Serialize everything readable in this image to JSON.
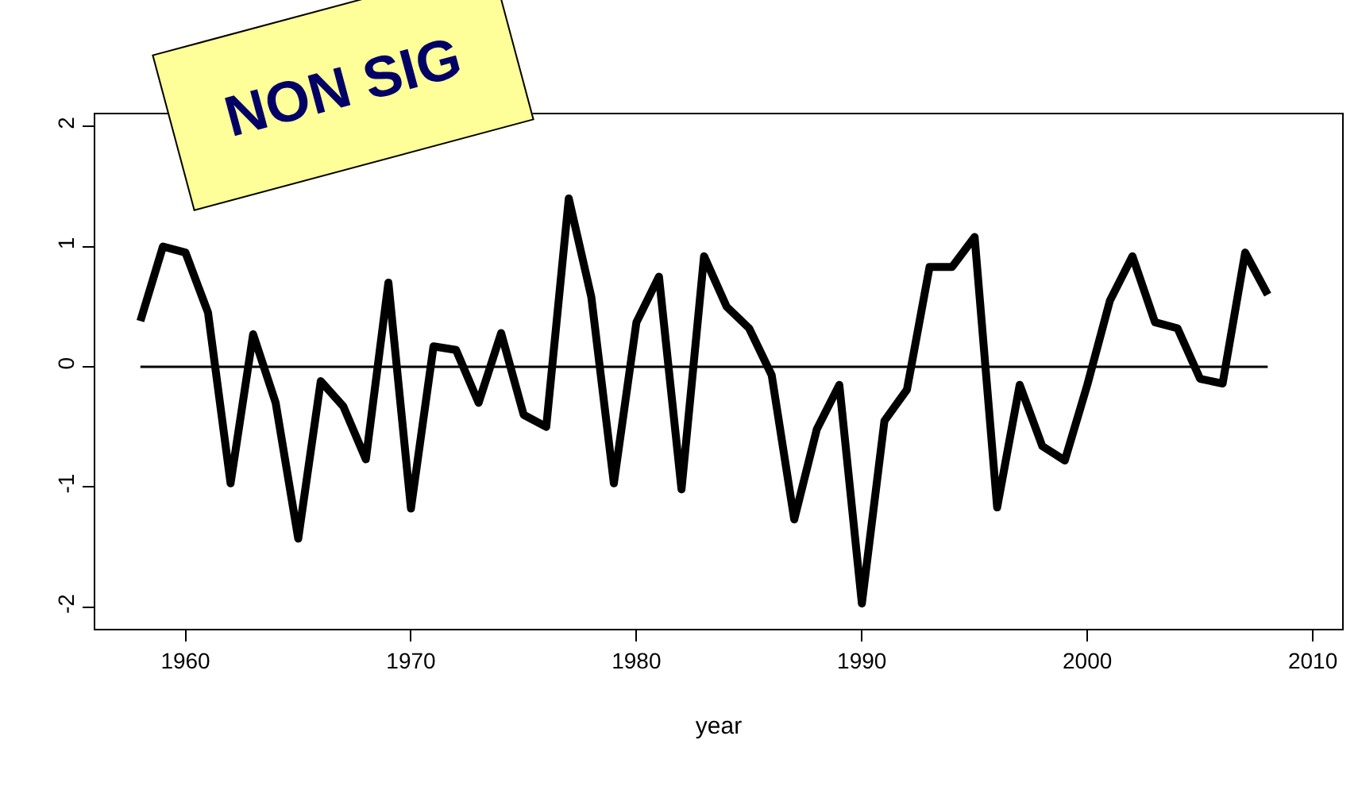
{
  "chart_data": {
    "type": "line",
    "xlabel": "year",
    "annotations": [
      "NON SIG"
    ],
    "x": [
      1958,
      1959,
      1960,
      1961,
      1962,
      1963,
      1964,
      1965,
      1966,
      1967,
      1968,
      1969,
      1970,
      1971,
      1972,
      1973,
      1974,
      1975,
      1976,
      1977,
      1978,
      1979,
      1980,
      1981,
      1982,
      1983,
      1984,
      1985,
      1986,
      1987,
      1988,
      1989,
      1990,
      1991,
      1992,
      1993,
      1994,
      1995,
      1996,
      1997,
      1998,
      1999,
      2000,
      2001,
      2002,
      2003,
      2004,
      2005,
      2006,
      2007,
      2008
    ],
    "series": [
      {
        "color": "#000000",
        "values": [
          0.38,
          1.0,
          0.95,
          0.45,
          -0.97,
          0.27,
          -0.3,
          -1.43,
          -0.12,
          -0.33,
          -0.77,
          0.7,
          -1.18,
          0.17,
          0.14,
          -0.3,
          0.28,
          -0.4,
          -0.5,
          1.4,
          0.58,
          -0.97,
          0.37,
          0.75,
          -1.02,
          0.92,
          0.5,
          0.32,
          -0.07,
          -1.27,
          -0.52,
          -0.15,
          -1.97,
          -0.45,
          -0.19,
          0.83,
          0.83,
          1.08,
          -1.17,
          -0.15,
          -0.66,
          -0.78,
          -0.15,
          0.55,
          0.92,
          0.37,
          0.32,
          -0.1,
          -0.14,
          0.95,
          0.6
        ]
      }
    ],
    "xlim": [
      1956,
      2011.3
    ],
    "xticks": [
      1960,
      1970,
      1980,
      1990,
      2000,
      2010
    ],
    "ylim": [
      -2.18,
      2.1
    ],
    "yticks": [
      -2,
      -1,
      0,
      1,
      2
    ],
    "ref_lines": [
      {
        "axis": "y",
        "value": 0,
        "color": "#000000"
      }
    ],
    "grid": false,
    "marker": "none",
    "line_style": "solid"
  }
}
